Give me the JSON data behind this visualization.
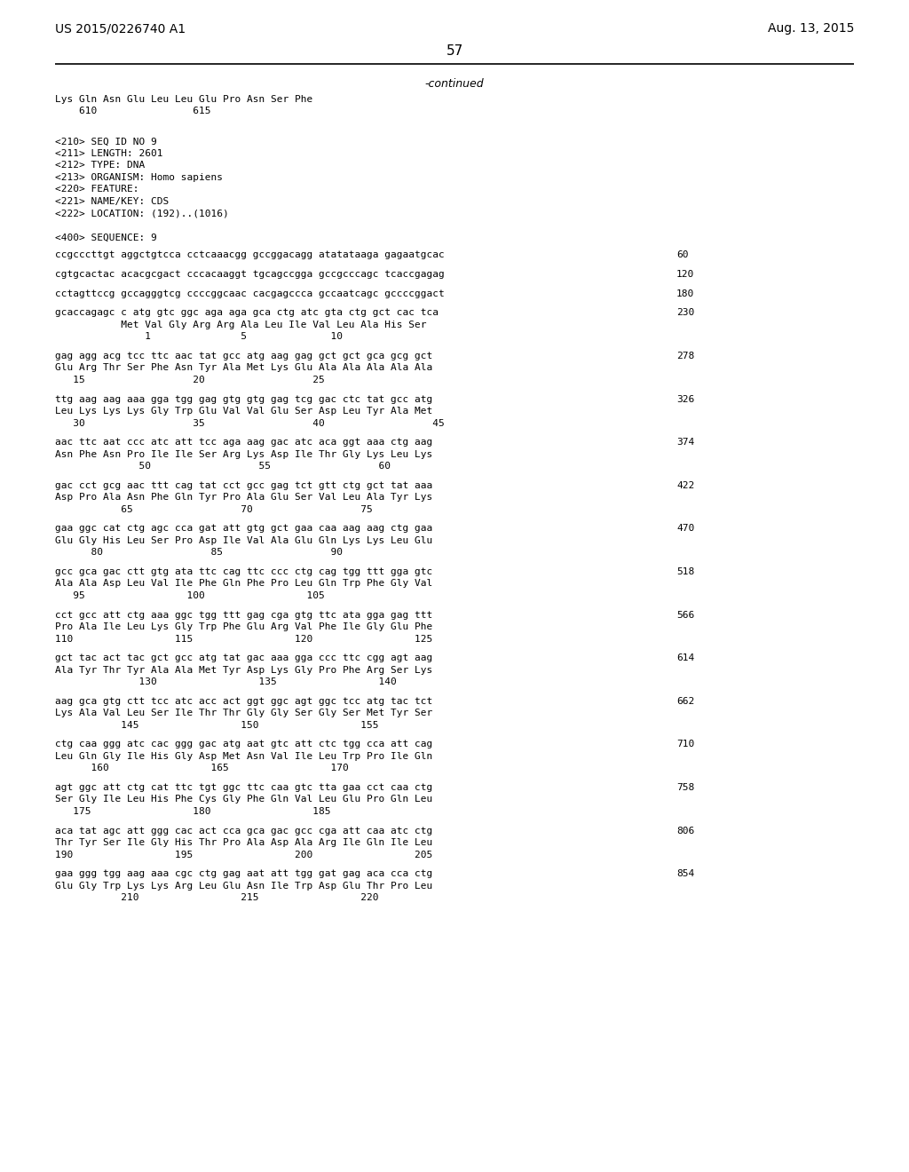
{
  "page_left": "US 2015/0226740 A1",
  "page_right": "Aug. 13, 2015",
  "page_number": "57",
  "continued": "-continued",
  "background_color": "#ffffff",
  "text_color": "#000000",
  "lines": [
    "Lys Gln Asn Glu Leu Leu Glu Pro Asn Ser Phe",
    "    610                615"
  ],
  "metadata": [
    "<210> SEQ ID NO 9",
    "<211> LENGTH: 2601",
    "<212> TYPE: DNA",
    "<213> ORGANISM: Homo sapiens",
    "<220> FEATURE:",
    "<221> NAME/KEY: CDS",
    "<222> LOCATION: (192)..(1016)"
  ],
  "sequence_header": "<400> SEQUENCE: 9",
  "sequence_blocks": [
    {
      "dna": "ccgcccttgt aggctgtcca cctcaaacgg gccggacagg atatataaga gagaatgcac",
      "num": "60",
      "aa": null,
      "aa_num": null
    },
    {
      "dna": "cgtgcactac acacgcgact cccacaaggt tgcagccgga gccgcccagc tcaccgagag",
      "num": "120",
      "aa": null,
      "aa_num": null
    },
    {
      "dna": "cctagttccg gccagggtcg ccccggcaac cacgagccca gccaatcagc gccccggact",
      "num": "180",
      "aa": null,
      "aa_num": null
    },
    {
      "dna": "gcaccagagc c atg gtc ggc aga aga gca ctg atc gta ctg gct cac tca",
      "num": "230",
      "aa": "           Met Val Gly Arg Arg Ala Leu Ile Val Leu Ala His Ser",
      "aa_num": "               1               5              10"
    },
    {
      "dna": "gag agg acg tcc ttc aac tat gcc atg aag gag gct gct gca gcg gct",
      "num": "278",
      "aa": "Glu Arg Thr Ser Phe Asn Tyr Ala Met Lys Glu Ala Ala Ala Ala Ala",
      "aa_num": "   15                  20                  25"
    },
    {
      "dna": "ttg aag aag aaa gga tgg gag gtg gtg gag tcg gac ctc tat gcc atg",
      "num": "326",
      "aa": "Leu Lys Lys Lys Gly Trp Glu Val Val Glu Ser Asp Leu Tyr Ala Met",
      "aa_num": "   30                  35                  40                  45"
    },
    {
      "dna": "aac ttc aat ccc atc att tcc aga aag gac atc aca ggt aaa ctg aag",
      "num": "374",
      "aa": "Asn Phe Asn Pro Ile Ile Ser Arg Lys Asp Ile Thr Gly Lys Leu Lys",
      "aa_num": "              50                  55                  60"
    },
    {
      "dna": "gac cct gcg aac ttt cag tat cct gcc gag tct gtt ctg gct tat aaa",
      "num": "422",
      "aa": "Asp Pro Ala Asn Phe Gln Tyr Pro Ala Glu Ser Val Leu Ala Tyr Lys",
      "aa_num": "           65                  70                  75"
    },
    {
      "dna": "gaa ggc cat ctg agc cca gat att gtg gct gaa caa aag aag ctg gaa",
      "num": "470",
      "aa": "Glu Gly His Leu Ser Pro Asp Ile Val Ala Glu Gln Lys Lys Leu Glu",
      "aa_num": "      80                  85                  90"
    },
    {
      "dna": "gcc gca gac ctt gtg ata ttc cag ttc ccc ctg cag tgg ttt gga gtc",
      "num": "518",
      "aa": "Ala Ala Asp Leu Val Ile Phe Gln Phe Pro Leu Gln Trp Phe Gly Val",
      "aa_num": "   95                 100                 105"
    },
    {
      "dna": "cct gcc att ctg aaa ggc tgg ttt gag cga gtg ttc ata gga gag ttt",
      "num": "566",
      "aa": "Pro Ala Ile Leu Lys Gly Trp Phe Glu Arg Val Phe Ile Gly Glu Phe",
      "aa_num": "110                 115                 120                 125"
    },
    {
      "dna": "gct tac act tac gct gcc atg tat gac aaa gga ccc ttc cgg agt aag",
      "num": "614",
      "aa": "Ala Tyr Thr Tyr Ala Ala Met Tyr Asp Lys Gly Pro Phe Arg Ser Lys",
      "aa_num": "              130                 135                 140"
    },
    {
      "dna": "aag gca gtg ctt tcc atc acc act ggt ggc agt ggc tcc atg tac tct",
      "num": "662",
      "aa": "Lys Ala Val Leu Ser Ile Thr Thr Gly Gly Ser Gly Ser Met Tyr Ser",
      "aa_num": "           145                 150                 155"
    },
    {
      "dna": "ctg caa ggg atc cac ggg gac atg aat gtc att ctc tgg cca att cag",
      "num": "710",
      "aa": "Leu Gln Gly Ile His Gly Asp Met Asn Val Ile Leu Trp Pro Ile Gln",
      "aa_num": "      160                 165                 170"
    },
    {
      "dna": "agt ggc att ctg cat ttc tgt ggc ttc caa gtc tta gaa cct caa ctg",
      "num": "758",
      "aa": "Ser Gly Ile Leu His Phe Cys Gly Phe Gln Val Leu Glu Pro Gln Leu",
      "aa_num": "   175                 180                 185"
    },
    {
      "dna": "aca tat agc att ggg cac act cca gca gac gcc cga att caa atc ctg",
      "num": "806",
      "aa": "Thr Tyr Ser Ile Gly His Thr Pro Ala Asp Ala Arg Ile Gln Ile Leu",
      "aa_num": "190                 195                 200                 205"
    },
    {
      "dna": "gaa ggg tgg aag aaa cgc ctg gag aat att tgg gat gag aca cca ctg",
      "num": "854",
      "aa": "Glu Gly Trp Lys Lys Arg Leu Glu Asn Ile Trp Asp Glu Thr Pro Leu",
      "aa_num": "           210                 215                 220"
    }
  ]
}
